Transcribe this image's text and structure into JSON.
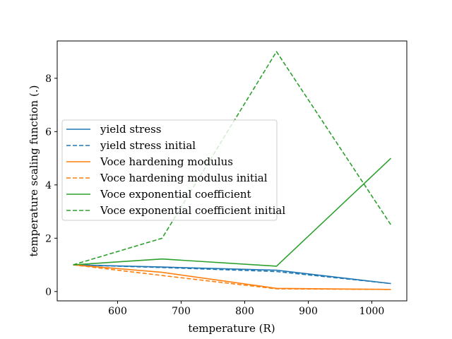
{
  "chart_data": {
    "type": "line",
    "xlabel": "temperature (R)",
    "ylabel": "temperature scaling function (.)",
    "xlim": [
      505,
      1055
    ],
    "ylim": [
      -0.35,
      9.4
    ],
    "xticks": [
      600,
      700,
      800,
      900,
      1000
    ],
    "yticks": [
      0,
      2,
      4,
      6,
      8
    ],
    "grid": false,
    "legend_position": "center-left",
    "series": [
      {
        "name": "yield stress",
        "color": "#1f77b4",
        "dash": false,
        "x": [
          530,
          670,
          850,
          1030
        ],
        "y": [
          1.0,
          0.92,
          0.8,
          0.3
        ]
      },
      {
        "name": "yield stress initial",
        "color": "#1f77b4",
        "dash": true,
        "x": [
          530,
          670,
          850,
          1030
        ],
        "y": [
          1.0,
          0.9,
          0.75,
          0.3
        ]
      },
      {
        "name": "Voce hardening modulus",
        "color": "#ff7f0e",
        "dash": false,
        "x": [
          530,
          670,
          850,
          1030
        ],
        "y": [
          1.0,
          0.72,
          0.12,
          0.08
        ]
      },
      {
        "name": "Voce hardening modulus initial",
        "color": "#ff7f0e",
        "dash": true,
        "x": [
          530,
          670,
          850,
          1030
        ],
        "y": [
          1.0,
          0.6,
          0.1,
          0.08
        ]
      },
      {
        "name": "Voce exponential coefficient",
        "color": "#2ca02c",
        "dash": false,
        "x": [
          530,
          670,
          850,
          1030
        ],
        "y": [
          1.0,
          1.22,
          0.95,
          5.0
        ]
      },
      {
        "name": "Voce exponential coefficient initial",
        "color": "#2ca02c",
        "dash": true,
        "x": [
          530,
          670,
          850,
          1030
        ],
        "y": [
          1.0,
          2.0,
          9.0,
          2.5
        ]
      }
    ]
  }
}
